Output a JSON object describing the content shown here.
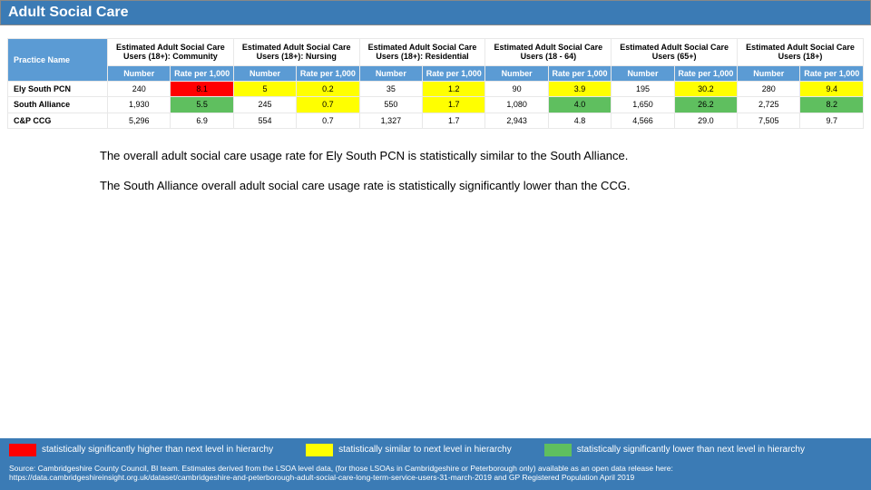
{
  "title": "Adult Social Care",
  "table": {
    "practice_header": "Practice Name",
    "groups": [
      "Estimated Adult Social Care Users (18+): Community",
      "Estimated Adult Social Care Users (18+): Nursing",
      "Estimated Adult Social Care Users (18+): Residential",
      "Estimated Adult Social Care Users (18 - 64)",
      "Estimated Adult Social Care Users (65+)",
      "Estimated Adult Social Care Users (18+)"
    ],
    "sub_headers": [
      "Number",
      "Rate per 1,000"
    ],
    "rows": [
      {
        "label": "Ely South PCN",
        "cells": [
          {
            "v": "240",
            "bg": "#ffffff"
          },
          {
            "v": "8.1",
            "bg": "#ff0000"
          },
          {
            "v": "5",
            "bg": "#ffff00"
          },
          {
            "v": "0.2",
            "bg": "#ffff00"
          },
          {
            "v": "35",
            "bg": "#ffffff"
          },
          {
            "v": "1.2",
            "bg": "#ffff00"
          },
          {
            "v": "90",
            "bg": "#ffffff"
          },
          {
            "v": "3.9",
            "bg": "#ffff00"
          },
          {
            "v": "195",
            "bg": "#ffffff"
          },
          {
            "v": "30.2",
            "bg": "#ffff00"
          },
          {
            "v": "280",
            "bg": "#ffffff"
          },
          {
            "v": "9.4",
            "bg": "#ffff00"
          }
        ]
      },
      {
        "label": "South Alliance",
        "cells": [
          {
            "v": "1,930",
            "bg": "#ffffff"
          },
          {
            "v": "5.5",
            "bg": "#5fbf5f"
          },
          {
            "v": "245",
            "bg": "#ffffff"
          },
          {
            "v": "0.7",
            "bg": "#ffff00"
          },
          {
            "v": "550",
            "bg": "#ffffff"
          },
          {
            "v": "1.7",
            "bg": "#ffff00"
          },
          {
            "v": "1,080",
            "bg": "#ffffff"
          },
          {
            "v": "4.0",
            "bg": "#5fbf5f"
          },
          {
            "v": "1,650",
            "bg": "#ffffff"
          },
          {
            "v": "26.2",
            "bg": "#5fbf5f"
          },
          {
            "v": "2,725",
            "bg": "#ffffff"
          },
          {
            "v": "8.2",
            "bg": "#5fbf5f"
          }
        ]
      },
      {
        "label": "C&P CCG",
        "cells": [
          {
            "v": "5,296",
            "bg": "#ffffff"
          },
          {
            "v": "6.9",
            "bg": "#ffffff"
          },
          {
            "v": "554",
            "bg": "#ffffff"
          },
          {
            "v": "0.7",
            "bg": "#ffffff"
          },
          {
            "v": "1,327",
            "bg": "#ffffff"
          },
          {
            "v": "1.7",
            "bg": "#ffffff"
          },
          {
            "v": "2,943",
            "bg": "#ffffff"
          },
          {
            "v": "4.8",
            "bg": "#ffffff"
          },
          {
            "v": "4,566",
            "bg": "#ffffff"
          },
          {
            "v": "29.0",
            "bg": "#ffffff"
          },
          {
            "v": "7,505",
            "bg": "#ffffff"
          },
          {
            "v": "9.7",
            "bg": "#ffffff"
          }
        ]
      }
    ]
  },
  "paragraphs": [
    "The overall adult social care usage rate for Ely South PCN is statistically similar to the South Alliance.",
    "The South Alliance overall adult social care usage rate is statistically significantly lower than the CCG."
  ],
  "legend": [
    {
      "color": "#ff0000",
      "text": "statistically significantly higher than next level in hierarchy"
    },
    {
      "color": "#ffff00",
      "text": "statistically similar to next level in hierarchy"
    },
    {
      "color": "#5fbf5f",
      "text": "statistically significantly lower than next level in hierarchy"
    }
  ],
  "source": "Source: Cambridgeshire County Council, BI team.  Estimates derived from the LSOA level data, (for those LSOAs in Cambridgeshire or Peterborough only) available as an open data release here: https://data.cambridgeshireinsight.org.uk/dataset/cambridgeshire-and-peterborough-adult-social-care-long-term-service-users-31-march-2019 and GP Registered Population April 2019"
}
